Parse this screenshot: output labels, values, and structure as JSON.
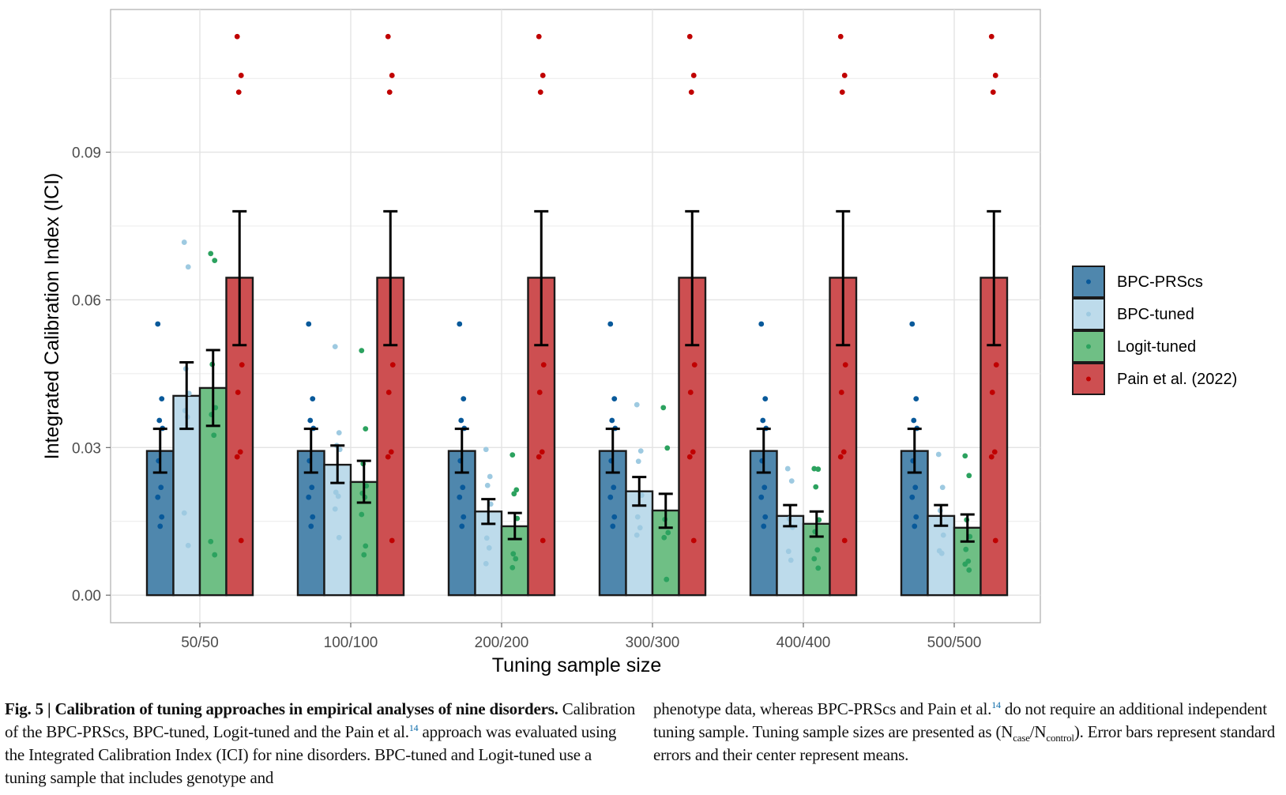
{
  "chart_data": {
    "type": "bar",
    "title": "",
    "xlabel": "Tuning sample size",
    "ylabel": "Integrated Calibration Index (ICI)",
    "ylim": [
      -0.0056,
      0.119
    ],
    "yticks": [
      0.0,
      0.03,
      0.06,
      0.09
    ],
    "ytick_labels": [
      "0.00",
      "0.03",
      "0.06",
      "0.09"
    ],
    "minor_gridlines": [
      0.015,
      0.045,
      0.075,
      0.105
    ],
    "grid": true,
    "legend_position": "right",
    "categories": [
      "50/50",
      "100/100",
      "200/200",
      "300/300",
      "400/400",
      "500/500"
    ],
    "series": [
      {
        "name": "BPC-PRScs",
        "fill": "#4f87ad",
        "point_color": "#08599a",
        "values": [
          0.0293,
          0.0293,
          0.0293,
          0.0293,
          0.0293,
          0.0293
        ],
        "se_low": [
          0.0249,
          0.0249,
          0.0249,
          0.0249,
          0.0249,
          0.0249
        ],
        "se_high": [
          0.0338,
          0.0338,
          0.0338,
          0.0338,
          0.0338,
          0.0338
        ],
        "points": [
          [
            0.0551,
            0.0399,
            0.0355,
            0.0339,
            0.0273,
            0.0219,
            0.0199,
            0.0159,
            0.014
          ],
          [
            0.0551,
            0.0399,
            0.0355,
            0.0339,
            0.0273,
            0.0219,
            0.0199,
            0.0159,
            0.014
          ],
          [
            0.0551,
            0.0399,
            0.0355,
            0.0339,
            0.0273,
            0.0219,
            0.0199,
            0.0159,
            0.014
          ],
          [
            0.0551,
            0.0399,
            0.0355,
            0.0339,
            0.0273,
            0.0219,
            0.0199,
            0.0159,
            0.014
          ],
          [
            0.0551,
            0.0399,
            0.0355,
            0.0339,
            0.0273,
            0.0219,
            0.0199,
            0.0159,
            0.014
          ],
          [
            0.0551,
            0.0399,
            0.0355,
            0.0339,
            0.0273,
            0.0219,
            0.0199,
            0.0159,
            0.014
          ]
        ]
      },
      {
        "name": "BPC-tuned",
        "fill": "#bddbeb",
        "point_color": "#9ecae1",
        "values": [
          0.0405,
          0.0265,
          0.017,
          0.0211,
          0.0161,
          0.0161
        ],
        "se_low": [
          0.0338,
          0.0228,
          0.0145,
          0.0182,
          0.014,
          0.0141
        ],
        "se_high": [
          0.0473,
          0.0304,
          0.0195,
          0.024,
          0.0183,
          0.0183
        ],
        "points": [
          [
            0.0717,
            0.0667,
            0.046,
            0.041,
            0.0375,
            0.0362,
            0.0167,
            0.0101
          ],
          [
            0.0505,
            0.033,
            0.0304,
            0.0296,
            0.0209,
            0.0201,
            0.0175,
            0.0117
          ],
          [
            0.0296,
            0.0241,
            0.0223,
            0.0185,
            0.0116,
            0.0096,
            0.0064
          ],
          [
            0.0387,
            0.0293,
            0.0272,
            0.0203,
            0.0159,
            0.0137,
            0.0122
          ],
          [
            0.0257,
            0.0232,
            0.0155,
            0.0138,
            0.0089,
            0.0071
          ],
          [
            0.0286,
            0.0219,
            0.0172,
            0.0122,
            0.009,
            0.0085
          ]
        ]
      },
      {
        "name": "Logit-tuned",
        "fill": "#6fbf85",
        "point_color": "#2ca25f",
        "values": [
          0.0421,
          0.023,
          0.014,
          0.0172,
          0.0145,
          0.0137
        ],
        "se_low": [
          0.0344,
          0.0188,
          0.0114,
          0.0137,
          0.0119,
          0.0109
        ],
        "se_high": [
          0.0498,
          0.0273,
          0.0167,
          0.0206,
          0.017,
          0.0164
        ],
        "points": [
          [
            0.0694,
            0.068,
            0.0469,
            0.0381,
            0.0367,
            0.0325,
            0.0109,
            0.0082
          ],
          [
            0.0497,
            0.0338,
            0.0267,
            0.0222,
            0.0207,
            0.0199,
            0.0164,
            0.01,
            0.0082
          ],
          [
            0.0285,
            0.0214,
            0.0206,
            0.0156,
            0.0084,
            0.0074,
            0.0056
          ],
          [
            0.0381,
            0.0299,
            0.0154,
            0.0127,
            0.0117,
            0.0032
          ],
          [
            0.0257,
            0.0256,
            0.022,
            0.0153,
            0.0129,
            0.0092,
            0.0074,
            0.0055
          ],
          [
            0.0283,
            0.0243,
            0.0153,
            0.0119,
            0.0093,
            0.0069,
            0.0063,
            0.0051
          ]
        ]
      },
      {
        "name": "Pain et al. (2022)",
        "fill": "#cd4f51",
        "point_color": "#c00000",
        "values": [
          0.0645,
          0.0645,
          0.0645,
          0.0645,
          0.0645,
          0.0645
        ],
        "se_low": [
          0.0508,
          0.0508,
          0.0508,
          0.0508,
          0.0508,
          0.0508
        ],
        "se_high": [
          0.078,
          0.078,
          0.078,
          0.078,
          0.078,
          0.078
        ],
        "points": [
          [
            0.1135,
            0.1056,
            0.1022,
            0.0468,
            0.0412,
            0.0291,
            0.0281,
            0.0111
          ],
          [
            0.1135,
            0.1056,
            0.1022,
            0.0468,
            0.0412,
            0.0291,
            0.0281,
            0.0111
          ],
          [
            0.1135,
            0.1056,
            0.1022,
            0.0468,
            0.0412,
            0.0291,
            0.0281,
            0.0111
          ],
          [
            0.1135,
            0.1056,
            0.1022,
            0.0468,
            0.0412,
            0.0291,
            0.0281,
            0.0111
          ],
          [
            0.1135,
            0.1056,
            0.1022,
            0.0468,
            0.0412,
            0.0291,
            0.0281,
            0.0111
          ],
          [
            0.1135,
            0.1056,
            0.1022,
            0.0468,
            0.0412,
            0.0291,
            0.0281,
            0.0111
          ]
        ]
      }
    ]
  },
  "caption": {
    "label": "Fig. 5 |",
    "title": "Calibration of tuning approaches in empirical analyses of nine disorders.",
    "body_part1": "Calibration of the BPC-PRScs, BPC-tuned, Logit-tuned and the Pain et al.",
    "ref1": "14",
    "body_part2": "approach was evaluated using the Integrated Calibration Index (ICI) for nine disorders. BPC-tuned and Logit-tuned use a tuning sample that includes genotype and phenotype data, whereas BPC-PRScs and Pain et al.",
    "ref2": "14",
    "body_part3": "do not require an additional independent tuning sample. Tuning sample sizes are presented as (N",
    "sub_case": "case",
    "slash": "/N",
    "sub_control": "control",
    "body_part4": "). Error bars represent standard errors and their center represent means."
  }
}
